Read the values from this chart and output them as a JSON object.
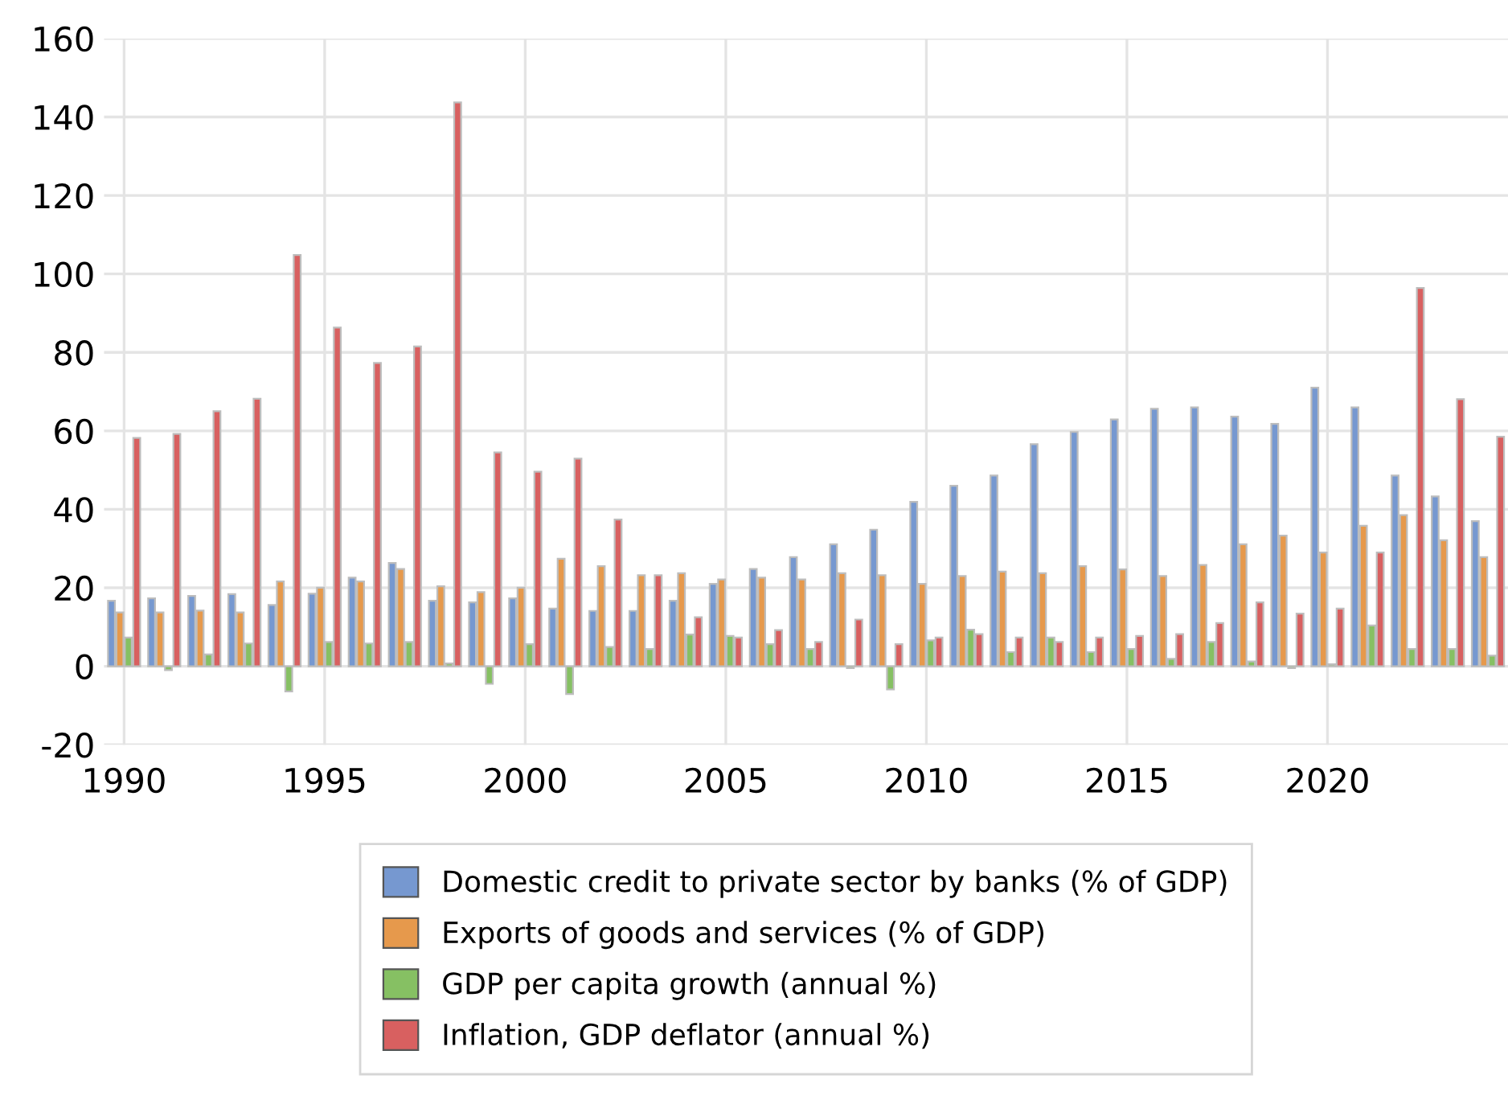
{
  "chart_data": {
    "type": "bar",
    "x": [
      1990,
      1991,
      1992,
      1993,
      1994,
      1995,
      1996,
      1997,
      1998,
      1999,
      2000,
      2001,
      2002,
      2003,
      2004,
      2005,
      2006,
      2007,
      2008,
      2009,
      2010,
      2011,
      2012,
      2013,
      2014,
      2015,
      2016,
      2017,
      2018,
      2019,
      2020,
      2021,
      2022,
      2023,
      2024
    ],
    "series": [
      {
        "name": "Domestic credit to private sector by banks (% of GDP)",
        "color": "#7698d0",
        "values": [
          16.7,
          17.3,
          17.9,
          18.4,
          15.6,
          18.5,
          22.6,
          26.3,
          16.7,
          16.3,
          17.3,
          14.7,
          14.1,
          14.1,
          16.7,
          21,
          24.8,
          27.8,
          31.1,
          34.8,
          41.9,
          46,
          48.6,
          56.6,
          59.7,
          62.9,
          65.6,
          66,
          63.6,
          61.8,
          71,
          66,
          48.6,
          43.3,
          37
        ]
      },
      {
        "name": "Exports of goods and services (% of GDP)",
        "color": "#e6994c",
        "values": [
          13.7,
          13.7,
          14.2,
          13.7,
          21.6,
          20,
          21.6,
          24.8,
          20.4,
          18.9,
          20,
          27.4,
          25.5,
          23.2,
          23.7,
          22.1,
          22.6,
          22.1,
          23.7,
          23.2,
          21,
          23,
          24.1,
          23.7,
          25.5,
          24.7,
          23,
          25.8,
          31.1,
          33.3,
          29,
          35.8,
          38.5,
          32.1,
          27.8
        ]
      },
      {
        "name": "GDP per capita growth (annual %)",
        "color": "#86c063",
        "values": [
          7.3,
          -1,
          3,
          5.8,
          -6.4,
          6.2,
          5.8,
          6.2,
          0.7,
          -4.5,
          5.6,
          -7.1,
          4.9,
          4.4,
          8.1,
          7.7,
          5.6,
          4.4,
          -0.5,
          -5.9,
          6.6,
          9.3,
          3.6,
          7.3,
          3.6,
          4.4,
          1.9,
          6.2,
          1.2,
          -0.5,
          0.5,
          10.4,
          4.4,
          4.4,
          2.7
        ]
      },
      {
        "name": "Inflation, GDP deflator (annual %)",
        "color": "#d86060",
        "values": [
          58.2,
          59.2,
          65,
          68.2,
          104.8,
          86.3,
          77.3,
          81.5,
          143.7,
          54.5,
          49.6,
          52.9,
          37.4,
          23.2,
          12.5,
          7.3,
          9.2,
          6.2,
          11.9,
          5.6,
          7.3,
          8.2,
          7.3,
          6.2,
          7.3,
          7.7,
          8.2,
          11,
          16.3,
          13.4,
          14.7,
          29,
          96.4,
          68.1,
          58.5
        ]
      }
    ],
    "xlim": [
      1989.5,
      2024.5
    ],
    "xticks": [
      1990,
      1995,
      2000,
      2005,
      2010,
      2015,
      2020
    ],
    "ylim": [
      -20,
      160
    ],
    "yticks": [
      -20,
      0,
      20,
      40,
      60,
      80,
      100,
      120,
      140,
      160
    ],
    "grid": true,
    "legend": "bottom"
  }
}
